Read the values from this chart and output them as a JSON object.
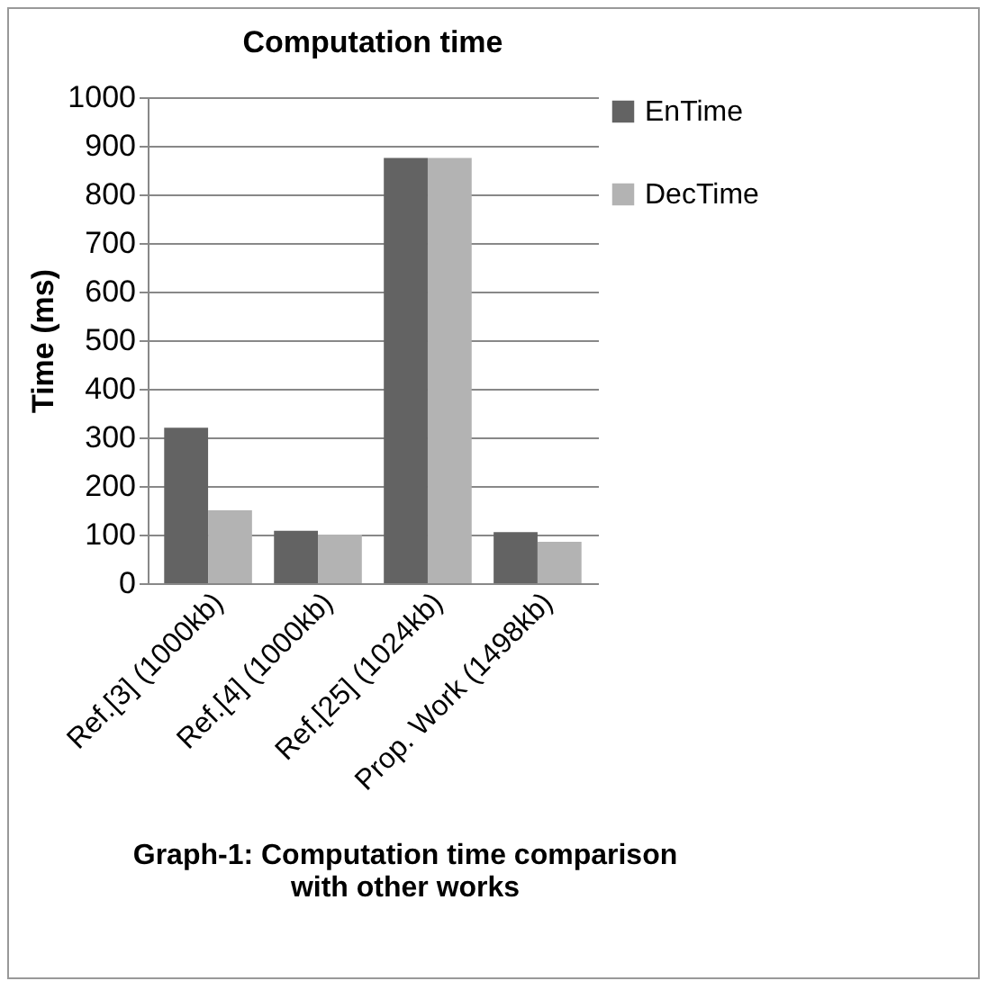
{
  "chart_data": {
    "type": "bar",
    "title": "Computation time",
    "ylabel": "Time (ms)",
    "categories": [
      "Ref.[3] (1000kb)",
      "Ref.[4] (1000kb)",
      "Ref.[25] (1024kb)",
      "Prop. Work (1498kb)"
    ],
    "series": [
      {
        "name": "EnTime",
        "color": "#636363",
        "values": [
          320,
          108,
          875,
          105
        ]
      },
      {
        "name": "DecTime",
        "color": "#b3b3b3",
        "values": [
          150,
          100,
          875,
          85
        ]
      }
    ],
    "ylim": [
      0,
      1000
    ],
    "yticks": [
      0,
      100,
      200,
      300,
      400,
      500,
      600,
      700,
      800,
      900,
      1000
    ],
    "grid": "y",
    "legend": "right",
    "annotations": [
      "Graph-1: Computation  time comparison with other works"
    ]
  }
}
